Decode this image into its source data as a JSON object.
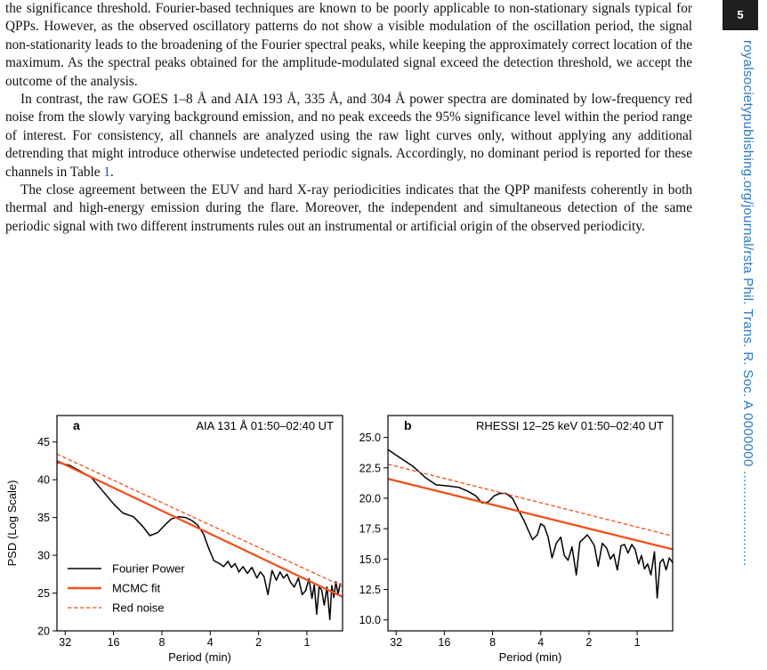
{
  "page": {
    "number": "5",
    "sidebar_text": "royalsocietypublishing.org/journal/rsta Phil. Trans. R. Soc. A 0000000",
    "sidebar_dots": "........................"
  },
  "paragraphs": {
    "p1": "the significance threshold. Fourier-based techniques are known to be poorly applicable to non-stationary signals typical for QPPs. However, as the observed oscillatory patterns do not show a visible modulation of the oscillation period, the signal non-stationarity leads to the broadening of the Fourier spectral peaks, while keeping the approximately correct location of the maximum. As the spectral peaks obtained for the amplitude-modulated signal exceed the detection threshold, we accept the outcome of the analysis.",
    "p2_before": "In contrast, the raw GOES 1–8 Å and AIA 193 Å, 335 Å, and 304 Å power spectra are dominated by low-frequency red noise from the slowly varying background emission, and no peak exceeds the 95% significance level within the period range of interest. For consistency, all channels are analyzed using the raw light curves only, without applying any additional detrending that might introduce otherwise undetected periodic signals. Accordingly, no dominant period is reported for these channels in Table ",
    "p2_ref": "1",
    "p2_after": ".",
    "p3": "The close agreement between the EUV and hard X-ray periodicities indicates that the QPP manifests coherently in both thermal and high-energy emission during the flare. Moreover, the independent and simultaneous detection of the same periodic signal with two different instruments rules out an instrumental or artificial origin of the observed periodicity."
  },
  "chart_data": [
    {
      "type": "line",
      "panel_letter": "a",
      "title": "AIA 131 Å 01:50–02:40 UT",
      "xlabel": "Period (min)",
      "ylabel": "PSD (Log Scale)",
      "x_scale": "log",
      "x_ticks": [
        32,
        16,
        8,
        4,
        2,
        1
      ],
      "x_tick_labels": [
        "32",
        "16",
        "8",
        "4",
        "2",
        "1"
      ],
      "xlim": [
        36,
        0.6
      ],
      "y_ticks": [
        20,
        25,
        30,
        35,
        40,
        45
      ],
      "y_tick_labels": [
        "20",
        "25",
        "30",
        "35",
        "40",
        "45"
      ],
      "ylim": [
        20,
        48.5
      ],
      "legend": {
        "placement": "lower-left",
        "entries": [
          "Fourier Power",
          "MCMC fit",
          "Red noise"
        ]
      },
      "series": [
        {
          "name": "Fourier Power",
          "color": "#000000",
          "style": "solid",
          "x": [
            36,
            30,
            26,
            22,
            19,
            16,
            14,
            12,
            10.5,
            9.5,
            8.5,
            7.5,
            7,
            6.3,
            5.7,
            5.2,
            4.8,
            4.4,
            4.1,
            3.8,
            3.5,
            3.3,
            3.1,
            2.95,
            2.8,
            2.65,
            2.5,
            2.35,
            2.2,
            2.05,
            1.95,
            1.85,
            1.75,
            1.65,
            1.55,
            1.47,
            1.4,
            1.33,
            1.27,
            1.2,
            1.13,
            1.07,
            1.02,
            0.97,
            0.93,
            0.9,
            0.87,
            0.84,
            0.81,
            0.78,
            0.75,
            0.72,
            0.7,
            0.68,
            0.66,
            0.64,
            0.62
          ],
          "y": [
            42.3,
            41.9,
            41.2,
            40.3,
            38.7,
            36.8,
            35.6,
            35.1,
            33.8,
            32.6,
            33.0,
            34.2,
            34.8,
            35.1,
            35.0,
            34.6,
            34.0,
            32.8,
            31.0,
            29.3,
            28.9,
            28.5,
            29.2,
            28.4,
            28.9,
            27.8,
            28.5,
            27.6,
            28.4,
            27.0,
            27.8,
            27.2,
            24.8,
            28.0,
            26.7,
            27.8,
            27.0,
            27.5,
            26.5,
            25.8,
            27.0,
            24.8,
            25.3,
            26.9,
            24.3,
            26.1,
            22.2,
            25.8,
            25.4,
            23.4,
            25.8,
            21.5,
            26.0,
            24.4,
            26.5,
            24.8,
            26.3
          ]
        },
        {
          "name": "MCMC fit",
          "color": "#f0501e",
          "style": "solid",
          "x": [
            36,
            0.6
          ],
          "y": [
            42.5,
            24.5
          ]
        },
        {
          "name": "Red noise",
          "color": "#f0501e",
          "style": "dashed",
          "x": [
            36,
            0.6
          ],
          "y": [
            43.4,
            25.9
          ]
        }
      ]
    },
    {
      "type": "line",
      "panel_letter": "b",
      "title": "RHESSI 12–25 keV 01:50–02:40 UT",
      "xlabel": "Period (min)",
      "ylabel": "",
      "x_scale": "log",
      "x_ticks": [
        32,
        16,
        8,
        4,
        2,
        1
      ],
      "x_tick_labels": [
        "32",
        "16",
        "8",
        "4",
        "2",
        "1"
      ],
      "xlim": [
        36,
        0.6
      ],
      "y_ticks": [
        10,
        12.5,
        15,
        17.5,
        20,
        22.5,
        25
      ],
      "y_tick_labels": [
        "10.0",
        "12.5",
        "15.0",
        "17.5",
        "20.0",
        "22.5",
        "25.0"
      ],
      "ylim": [
        9.1,
        26.8
      ],
      "series": [
        {
          "name": "Fourier Power",
          "color": "#000000",
          "style": "solid",
          "x": [
            36,
            30,
            25,
            21,
            18,
            15,
            13,
            11.5,
            10.2,
            9.3,
            8.5,
            7.8,
            7.2,
            6.6,
            6,
            5.5,
            5.1,
            4.8,
            4.5,
            4.2,
            4,
            3.8,
            3.6,
            3.4,
            3.2,
            3.0,
            2.85,
            2.7,
            2.55,
            2.4,
            2.28,
            2.15,
            2.05,
            1.95,
            1.85,
            1.75,
            1.65,
            1.55,
            1.47,
            1.4,
            1.33,
            1.26,
            1.2,
            1.14,
            1.08,
            1.03,
            0.98,
            0.94,
            0.9,
            0.86,
            0.82,
            0.78,
            0.75,
            0.72,
            0.69,
            0.66,
            0.63,
            0.6
          ],
          "y": [
            24.0,
            23.3,
            22.6,
            21.7,
            21.1,
            21.0,
            20.9,
            20.6,
            20.2,
            19.6,
            19.7,
            20.2,
            20.4,
            20.4,
            20.0,
            19.0,
            18.2,
            17.4,
            16.6,
            17.0,
            17.9,
            17.7,
            16.8,
            15.1,
            16.3,
            16.8,
            15.3,
            14.9,
            16.0,
            13.7,
            16.4,
            16.7,
            17.0,
            16.6,
            16.1,
            14.4,
            16.3,
            15.9,
            15.0,
            15.4,
            14.1,
            16.1,
            16.2,
            15.5,
            16.2,
            15.8,
            14.6,
            15.3,
            14.2,
            14.6,
            13.7,
            15.6,
            11.8,
            14.7,
            15.0,
            14.1,
            15.1,
            14.7
          ]
        },
        {
          "name": "MCMC fit",
          "color": "#f0501e",
          "style": "solid",
          "x": [
            36,
            0.6
          ],
          "y": [
            21.6,
            15.8
          ]
        },
        {
          "name": "Red noise",
          "color": "#f0501e",
          "style": "dashed",
          "x": [
            36,
            0.6
          ],
          "y": [
            22.8,
            16.9
          ]
        }
      ]
    }
  ]
}
